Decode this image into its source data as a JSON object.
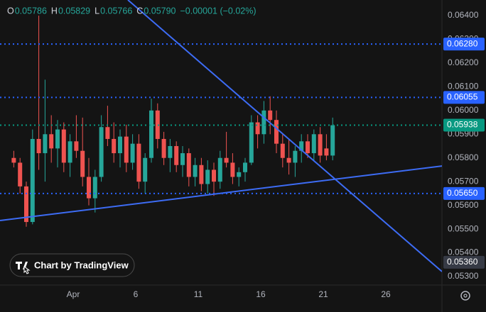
{
  "chart_data": {
    "type": "candlestick",
    "header": [
      {
        "key": "O",
        "value": "0.05786"
      },
      {
        "key": "H",
        "value": "0.05829"
      },
      {
        "key": "L",
        "value": "0.05766"
      },
      {
        "key": "C",
        "value": "0.05790"
      },
      {
        "key": null,
        "value": "−0.00001 (−0.02%)"
      }
    ],
    "categories": [
      null,
      null,
      null,
      null,
      null,
      null,
      null,
      null,
      null,
      null,
      "Apr",
      null,
      null,
      null,
      null,
      null,
      null,
      null,
      null,
      null,
      "6",
      null,
      null,
      null,
      null,
      null,
      null,
      null,
      null,
      null,
      "11",
      null,
      null,
      null,
      null,
      null,
      null,
      null,
      null,
      null,
      "16",
      null,
      null,
      null,
      null,
      null,
      null,
      null,
      null,
      null,
      "21",
      null,
      null,
      null,
      null,
      null,
      null,
      null,
      null,
      null,
      "26",
      null,
      null,
      null,
      null,
      null,
      null,
      null,
      null
    ],
    "open": [
      0.058,
      0.0578,
      0.0568,
      0.0553,
      0.0588,
      0.0582,
      0.059,
      0.0584,
      0.0592,
      0.0578,
      0.0587,
      0.0583,
      0.0572,
      0.0563,
      0.0572,
      0.0593,
      0.0588,
      0.0582,
      0.0589,
      0.0578,
      0.0586,
      0.057,
      0.058,
      0.06,
      0.0588,
      0.058,
      0.0585,
      0.0577,
      0.0582,
      0.0572,
      0.0577,
      0.0569,
      0.0575,
      0.057,
      0.058,
      0.0578,
      0.0572,
      0.0574,
      0.0578,
      0.0595,
      0.059,
      0.06,
      0.0596,
      0.0586,
      0.058,
      0.0578,
      0.0583,
      0.0587,
      0.0582,
      0.059,
      0.0584,
      0.0581,
      null,
      null,
      null,
      null,
      null,
      null,
      null,
      null,
      null,
      null,
      null,
      null,
      null,
      null,
      null,
      null,
      null
    ],
    "high": [
      0.0583,
      0.058,
      0.057,
      0.0592,
      0.064,
      0.0613,
      0.0598,
      0.0596,
      0.0595,
      0.059,
      0.0598,
      0.0597,
      0.058,
      0.0575,
      0.0598,
      0.0602,
      0.0595,
      0.0592,
      0.0594,
      0.059,
      0.059,
      0.0582,
      0.0605,
      0.0603,
      0.0591,
      0.0588,
      0.0587,
      0.0585,
      0.0584,
      0.058,
      0.058,
      0.0579,
      0.0578,
      0.0583,
      0.0591,
      0.0582,
      0.0576,
      0.058,
      0.0598,
      0.0598,
      0.0604,
      0.0606,
      0.06,
      0.059,
      0.0588,
      0.0585,
      0.059,
      0.059,
      0.0592,
      0.0593,
      0.059,
      0.0597,
      null,
      null,
      null,
      null,
      null,
      null,
      null,
      null,
      null,
      null,
      null,
      null,
      null,
      null,
      null,
      null,
      null
    ],
    "low": [
      0.0576,
      0.0565,
      0.0551,
      0.0552,
      0.0575,
      0.057,
      0.0578,
      0.0576,
      0.0574,
      0.0572,
      0.058,
      0.0568,
      0.056,
      0.0557,
      0.057,
      0.0585,
      0.0578,
      0.0576,
      0.0574,
      0.0575,
      0.0567,
      0.0565,
      0.0578,
      0.0584,
      0.0577,
      0.0574,
      0.0574,
      0.0572,
      0.0568,
      0.0568,
      0.0566,
      0.0565,
      0.0564,
      0.0567,
      0.0576,
      0.0569,
      0.0568,
      0.057,
      0.0577,
      0.0584,
      0.0586,
      0.059,
      0.0582,
      0.0576,
      0.0573,
      0.0572,
      0.0578,
      0.058,
      0.0579,
      0.0578,
      0.0579,
      0.0579,
      null,
      null,
      null,
      null,
      null,
      null,
      null,
      null,
      null,
      null,
      null,
      null,
      null,
      null,
      null,
      null,
      null
    ],
    "close": [
      0.0578,
      0.0568,
      0.0553,
      0.0588,
      0.0582,
      0.059,
      0.0584,
      0.0592,
      0.0578,
      0.0587,
      0.0583,
      0.0572,
      0.0563,
      0.0572,
      0.0593,
      0.0588,
      0.0582,
      0.0589,
      0.0578,
      0.0586,
      0.057,
      0.058,
      0.06,
      0.0588,
      0.058,
      0.0585,
      0.0577,
      0.0582,
      0.0572,
      0.0577,
      0.0569,
      0.0575,
      0.057,
      0.058,
      0.0578,
      0.0572,
      0.0574,
      0.0578,
      0.0595,
      0.059,
      0.06,
      0.0596,
      0.0586,
      0.058,
      0.0578,
      0.0583,
      0.0587,
      0.0582,
      0.059,
      0.0581,
      0.0581,
      0.05938,
      null,
      null,
      null,
      null,
      null,
      null,
      null,
      null,
      null,
      null,
      null,
      null,
      null,
      null,
      null,
      null,
      null
    ],
    "up_color": "#26a69a",
    "down_color": "#ef5350",
    "ylim": [
      0.053,
      0.064
    ],
    "yticks": [
      {
        "value": 0.064,
        "label": "0.06400"
      },
      {
        "value": 0.063,
        "label": "0.06300"
      },
      {
        "value": 0.062,
        "label": "0.06200"
      },
      {
        "value": 0.061,
        "label": "0.06100"
      },
      {
        "value": 0.06,
        "label": "0.06000"
      },
      {
        "value": 0.059,
        "label": "0.05900"
      },
      {
        "value": 0.058,
        "label": "0.05800"
      },
      {
        "value": 0.057,
        "label": "0.05700"
      },
      {
        "value": 0.056,
        "label": "0.05600"
      },
      {
        "value": 0.055,
        "label": "0.05500"
      },
      {
        "value": 0.054,
        "label": "0.05400"
      },
      {
        "value": 0.053,
        "label": "0.05300"
      }
    ],
    "price_lines": [
      {
        "value": 0.0628,
        "label": "0.06280",
        "color": "#2962ff"
      },
      {
        "value": 0.06055,
        "label": "0.06055",
        "color": "#2962ff"
      },
      {
        "value": 0.05938,
        "label": "0.05938",
        "color": "#089981"
      },
      {
        "value": 0.0565,
        "label": "0.05650",
        "color": "#2962ff"
      }
    ],
    "crosshair": {
      "value": 0.0536,
      "label": "0.05360"
    },
    "trendlines": [
      {
        "color": "#3d6cf5",
        "points": [
          {
            "x": 18.25,
            "y": 0.06466
          },
          {
            "x": 68.48,
            "y": 0.05321
          }
        ]
      },
      {
        "color": "#3d6cf5",
        "points": [
          {
            "x": -2.2,
            "y": 0.05536
          },
          {
            "x": 68.48,
            "y": 0.05766
          }
        ]
      }
    ],
    "grid": false,
    "attribution": "Chart by TradingView"
  }
}
